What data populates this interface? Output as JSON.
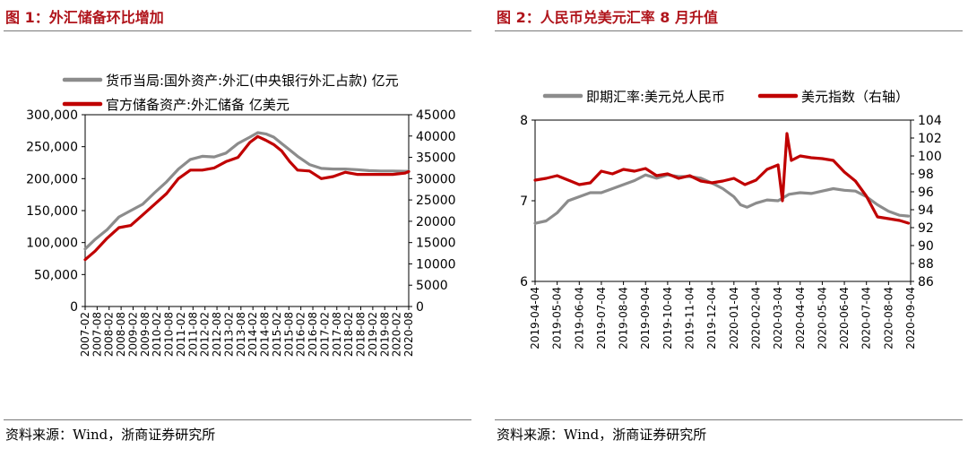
{
  "left": {
    "title": "图 1：外汇储备环比增加",
    "source": "资料来源：Wind，浙商证券研究所"
  },
  "right": {
    "title": "图 2：人民币兑美元汇率 8 月升值",
    "source": "资料来源：Wind，浙商证券研究所"
  },
  "chart_data": [
    {
      "type": "line",
      "title": "外汇储备环比增加",
      "legend_position": "top",
      "y_left": {
        "min": 0,
        "max": 300000,
        "ticks": [
          "0",
          "50,000",
          "100,000",
          "150,000",
          "200,000",
          "250,000",
          "300,000"
        ],
        "tick_values": [
          0,
          50000,
          100000,
          150000,
          200000,
          250000,
          300000
        ]
      },
      "y_right": {
        "min": 0,
        "max": 45000,
        "ticks": [
          "0",
          "5000",
          "10000",
          "15000",
          "20000",
          "25000",
          "30000",
          "35000",
          "40000",
          "45000"
        ],
        "tick_values": [
          0,
          5000,
          10000,
          15000,
          20000,
          25000,
          30000,
          35000,
          40000,
          45000
        ]
      },
      "x_range": [
        2007.083,
        2020.667
      ],
      "categories": [
        "2007-02",
        "2007-08",
        "2008-02",
        "2008-08",
        "2009-02",
        "2009-08",
        "2010-02",
        "2010-08",
        "2011-02",
        "2011-08",
        "2012-02",
        "2012-08",
        "2013-02",
        "2013-08",
        "2014-02",
        "2014-08",
        "2015-02",
        "2015-08",
        "2016-02",
        "2016-08",
        "2017-02",
        "2017-08",
        "2018-02",
        "2018-08",
        "2019-02",
        "2019-08",
        "2020-02",
        "2020-08"
      ],
      "series": [
        {
          "name": "货币当局:国外资产:外汇(中央银行外汇占款) 亿元",
          "axis": "left",
          "color": "#8c8c8c",
          "x": [
            2007.083,
            2007.5,
            2008.0,
            2008.5,
            2009.0,
            2009.5,
            2010.0,
            2010.5,
            2011.0,
            2011.5,
            2012.0,
            2012.5,
            2013.0,
            2013.5,
            2014.0,
            2014.33,
            2014.67,
            2015.0,
            2015.33,
            2015.67,
            2016.0,
            2016.5,
            2017.0,
            2017.5,
            2018.0,
            2018.5,
            2019.0,
            2019.5,
            2020.0,
            2020.5,
            2020.667
          ],
          "values": [
            90000,
            105000,
            120000,
            140000,
            150000,
            160000,
            178000,
            195000,
            215000,
            230000,
            235000,
            234000,
            240000,
            255000,
            265000,
            272000,
            270000,
            265000,
            255000,
            245000,
            235000,
            222000,
            216000,
            215000,
            215000,
            214000,
            212500,
            212000,
            212000,
            211500,
            211500
          ]
        },
        {
          "name": "官方储备资产:外汇储备 亿美元",
          "axis": "right",
          "color": "#c00000",
          "x": [
            2007.083,
            2007.5,
            2008.0,
            2008.5,
            2009.0,
            2009.5,
            2010.0,
            2010.5,
            2011.0,
            2011.5,
            2012.0,
            2012.5,
            2013.0,
            2013.5,
            2014.0,
            2014.33,
            2014.67,
            2015.0,
            2015.33,
            2015.67,
            2016.0,
            2016.5,
            2017.0,
            2017.5,
            2018.0,
            2018.5,
            2019.0,
            2019.5,
            2020.0,
            2020.5,
            2020.667
          ],
          "values": [
            11000,
            13000,
            16000,
            18500,
            19000,
            21500,
            24000,
            26500,
            30000,
            32000,
            32000,
            32500,
            34000,
            35000,
            38500,
            39900,
            39000,
            38000,
            36500,
            34000,
            32000,
            31800,
            30000,
            30500,
            31500,
            31000,
            31000,
            31000,
            31000,
            31300,
            31650
          ]
        }
      ]
    },
    {
      "type": "line",
      "title": "人民币兑美元汇率 8 月升值",
      "legend_position": "top",
      "y_left": {
        "min": 6,
        "max": 8,
        "ticks": [
          "6",
          "7",
          "8"
        ],
        "tick_values": [
          6,
          7,
          8
        ]
      },
      "y_right": {
        "min": 86,
        "max": 104,
        "ticks": [
          "86",
          "88",
          "90",
          "92",
          "94",
          "96",
          "98",
          "100",
          "102",
          "104"
        ],
        "tick_values": [
          86,
          88,
          90,
          92,
          94,
          96,
          98,
          100,
          102,
          104
        ]
      },
      "x_range": [
        0,
        17
      ],
      "categories": [
        "2019-04-04",
        "2019-05-04",
        "2019-06-04",
        "2019-07-04",
        "2019-08-04",
        "2019-09-04",
        "2019-10-04",
        "2019-11-04",
        "2019-12-04",
        "2020-01-04",
        "2020-02-04",
        "2020-03-04",
        "2020-04-04",
        "2020-05-04",
        "2020-06-04",
        "2020-07-04",
        "2020-08-04",
        "2020-09-04"
      ],
      "series": [
        {
          "name": "即期汇率:美元兑人民币",
          "axis": "left",
          "color": "#8c8c8c",
          "x": [
            0,
            0.5,
            1,
            1.5,
            2,
            2.5,
            3,
            3.5,
            4,
            4.5,
            5,
            5.5,
            6,
            6.5,
            7,
            7.5,
            8,
            8.5,
            9,
            9.3,
            9.6,
            10,
            10.5,
            11,
            11.5,
            12,
            12.5,
            13,
            13.5,
            14,
            14.5,
            15,
            15.5,
            16,
            16.5,
            16.9
          ],
          "values": [
            6.72,
            6.75,
            6.85,
            7.0,
            7.05,
            7.1,
            7.1,
            7.15,
            7.2,
            7.25,
            7.32,
            7.28,
            7.32,
            7.3,
            7.3,
            7.28,
            7.22,
            7.15,
            7.05,
            6.95,
            6.92,
            6.97,
            7.01,
            7.0,
            7.08,
            7.1,
            7.09,
            7.12,
            7.15,
            7.13,
            7.12,
            7.05,
            6.95,
            6.87,
            6.82,
            6.81
          ]
        },
        {
          "name": "美元指数（右轴）",
          "axis": "right",
          "color": "#c00000",
          "x": [
            0,
            0.5,
            1,
            1.5,
            2,
            2.5,
            3,
            3.5,
            4,
            4.5,
            5,
            5.5,
            6,
            6.5,
            7,
            7.5,
            8,
            8.5,
            9,
            9.5,
            10,
            10.5,
            11,
            11.2,
            11.4,
            11.6,
            12,
            12.5,
            13,
            13.5,
            14,
            14.5,
            15,
            15.5,
            16,
            16.5,
            16.9
          ],
          "values": [
            97.3,
            97.5,
            97.8,
            97.3,
            96.8,
            97.0,
            98.3,
            98.0,
            98.5,
            98.3,
            98.6,
            97.8,
            98.0,
            97.5,
            97.8,
            97.2,
            97.0,
            97.2,
            97.5,
            96.8,
            97.3,
            98.5,
            99.0,
            95.0,
            102.5,
            99.5,
            100.0,
            99.8,
            99.7,
            99.5,
            98.2,
            97.2,
            95.5,
            93.2,
            93.0,
            92.8,
            92.5
          ]
        }
      ]
    }
  ]
}
